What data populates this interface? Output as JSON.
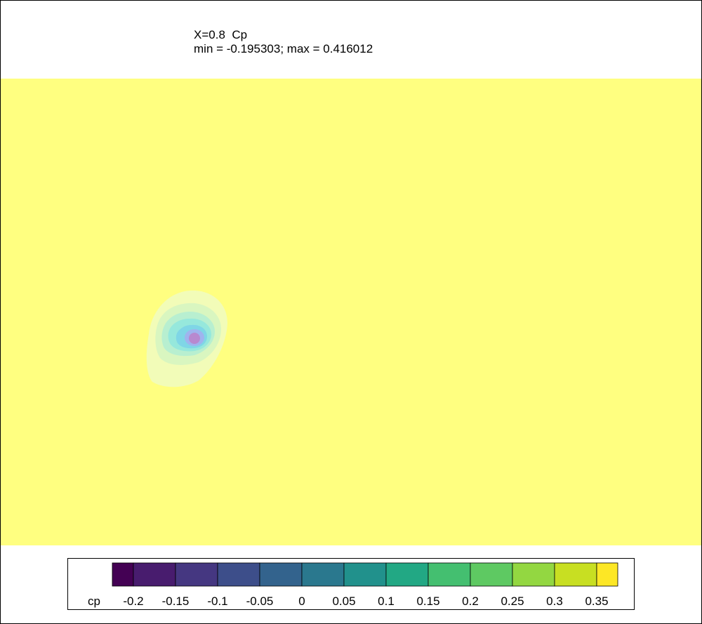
{
  "title": {
    "line1": "X=0.8  Cp",
    "line2": "min = -0.195303; max = 0.416012"
  },
  "chart_data": {
    "type": "heatmap",
    "variable": "cp",
    "min": -0.195303,
    "max": 0.416012,
    "background_value_approx": 0.39,
    "low_pressure_region": {
      "min_value_approx": -0.1,
      "location": "left-center"
    },
    "colorbar": {
      "label": "cp",
      "ticks": [
        "-0.2",
        "-0.15",
        "-0.1",
        "-0.05",
        "0",
        "0.05",
        "0.1",
        "0.15",
        "0.2",
        "0.25",
        "0.3",
        "0.35"
      ],
      "bins": [
        {
          "from": -0.225,
          "to": -0.2,
          "color": "#440154"
        },
        {
          "from": -0.2,
          "to": -0.15,
          "color": "#481c6e"
        },
        {
          "from": -0.15,
          "to": -0.1,
          "color": "#453781"
        },
        {
          "from": -0.1,
          "to": -0.05,
          "color": "#3d4e8a"
        },
        {
          "from": -0.05,
          "to": 0,
          "color": "#33638d"
        },
        {
          "from": 0,
          "to": 0.05,
          "color": "#2a788e"
        },
        {
          "from": 0.05,
          "to": 0.1,
          "color": "#21918c"
        },
        {
          "from": 0.1,
          "to": 0.15,
          "color": "#22a884"
        },
        {
          "from": 0.15,
          "to": 0.2,
          "color": "#44bf70"
        },
        {
          "from": 0.2,
          "to": 0.25,
          "color": "#5ec962"
        },
        {
          "from": 0.25,
          "to": 0.3,
          "color": "#93d741"
        },
        {
          "from": 0.3,
          "to": 0.35,
          "color": "#c8df22"
        },
        {
          "from": 0.35,
          "to": 0.375,
          "color": "#fde725"
        }
      ]
    },
    "field_colors": {
      "background": "#ffff80",
      "ring1": "#f2fcb8",
      "ring2": "#d9f6c0",
      "ring3": "#b8efd0",
      "ring4": "#96e8dc",
      "ring5": "#7fd6e6",
      "ring6": "#9fb4ee",
      "core": "#b889cf"
    }
  }
}
